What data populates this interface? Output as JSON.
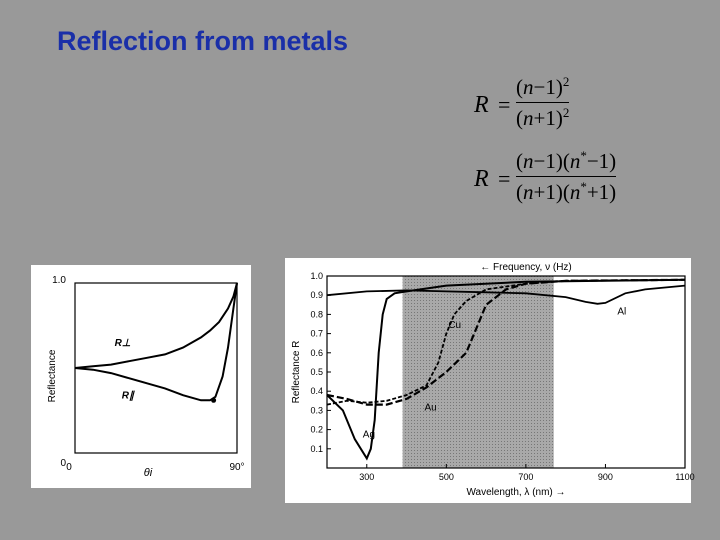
{
  "title": "Reflection from metals",
  "equations": [
    {
      "lhs": "R",
      "num": [
        "(",
        "n",
        "−1)",
        "2"
      ],
      "den": [
        "(",
        "n",
        "+1)",
        "2"
      ]
    },
    {
      "lhs": "R",
      "num": [
        "(",
        "n",
        "−1)(",
        "n",
        "*",
        "−1)"
      ],
      "den": [
        "(",
        "n",
        "+1)(",
        "n",
        "*",
        "+1)"
      ]
    }
  ],
  "chart_data": [
    {
      "type": "line",
      "ylabel": "Reflectance",
      "xlabel": "θi",
      "x_ticks": [
        "0",
        "90°"
      ],
      "y_ticks": [
        "0",
        "1.0"
      ],
      "xlim": [
        0,
        90
      ],
      "ylim": [
        0,
        1.0
      ],
      "series": [
        {
          "name": "R⊥",
          "x": [
            0,
            10,
            20,
            30,
            40,
            50,
            60,
            70,
            75,
            80,
            85,
            88,
            90
          ],
          "y": [
            0.5,
            0.51,
            0.52,
            0.54,
            0.56,
            0.58,
            0.62,
            0.68,
            0.72,
            0.77,
            0.85,
            0.92,
            1.0
          ]
        },
        {
          "name": "R∥",
          "x": [
            0,
            10,
            20,
            30,
            40,
            50,
            60,
            70,
            75,
            78,
            82,
            85,
            88,
            90
          ],
          "y": [
            0.5,
            0.49,
            0.47,
            0.44,
            0.41,
            0.38,
            0.34,
            0.31,
            0.31,
            0.33,
            0.45,
            0.62,
            0.85,
            1.0
          ]
        }
      ]
    },
    {
      "type": "line",
      "title": "← Frequency, ν (Hz)",
      "xlabel": "Wavelength, λ (nm) →",
      "ylabel": "Reflectance R",
      "x_ticks": [
        "300",
        "500",
        "700",
        "900",
        "1100"
      ],
      "y_ticks": [
        "1.0",
        "0.9",
        "0.8",
        "0.7",
        "0.6",
        "0.5",
        "0.4",
        "0.3",
        "0.2",
        "0.1"
      ],
      "xlim": [
        200,
        1100
      ],
      "ylim": [
        0,
        1.0
      ],
      "shaded_region": [
        390,
        770
      ],
      "series": [
        {
          "name": "Al",
          "x": [
            200,
            300,
            400,
            500,
            600,
            700,
            800,
            850,
            880,
            900,
            950,
            1000,
            1100
          ],
          "y": [
            0.9,
            0.92,
            0.925,
            0.92,
            0.915,
            0.91,
            0.89,
            0.865,
            0.855,
            0.86,
            0.91,
            0.93,
            0.95
          ]
        },
        {
          "name": "Ag",
          "x": [
            200,
            240,
            270,
            300,
            310,
            320,
            330,
            340,
            350,
            370,
            400,
            500,
            700,
            1100
          ],
          "y": [
            0.38,
            0.3,
            0.15,
            0.05,
            0.1,
            0.25,
            0.6,
            0.8,
            0.88,
            0.91,
            0.92,
            0.95,
            0.97,
            0.98
          ]
        },
        {
          "name": "Au",
          "x": [
            200,
            250,
            300,
            350,
            400,
            450,
            480,
            500,
            520,
            550,
            600,
            700,
            800,
            1100
          ],
          "y": [
            0.33,
            0.35,
            0.34,
            0.35,
            0.38,
            0.43,
            0.55,
            0.7,
            0.8,
            0.87,
            0.93,
            0.96,
            0.975,
            0.98
          ]
        },
        {
          "name": "Cu",
          "x": [
            200,
            250,
            300,
            350,
            400,
            450,
            500,
            550,
            580,
            600,
            650,
            700,
            800,
            1100
          ],
          "y": [
            0.38,
            0.36,
            0.33,
            0.33,
            0.36,
            0.42,
            0.5,
            0.6,
            0.75,
            0.85,
            0.93,
            0.96,
            0.975,
            0.98
          ]
        }
      ],
      "series_labels": [
        "Al",
        "Cu",
        "Au",
        "Ag"
      ]
    }
  ]
}
